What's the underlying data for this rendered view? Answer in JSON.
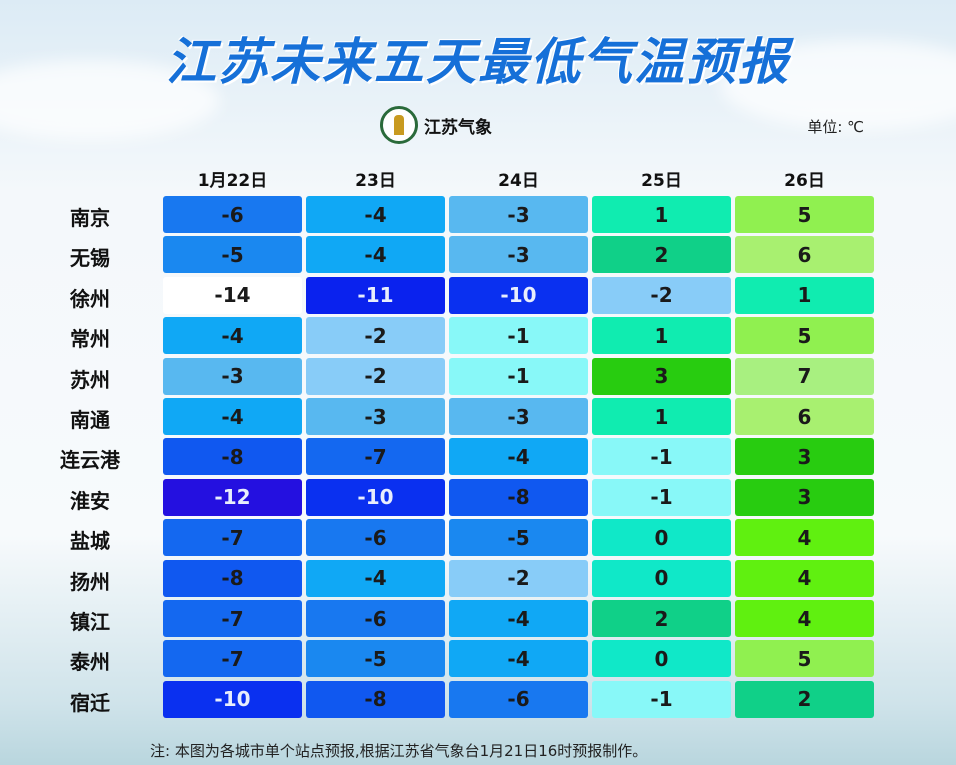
{
  "header": {
    "title": "江苏未来五天最低气温预报",
    "logo_text": "江苏气象",
    "unit": "单位: ℃"
  },
  "footnote": "注: 本图为各城市单个站点预报,根据江苏省气象台1月21日16时预报制作。",
  "chart_data": {
    "type": "heatmap",
    "columns": [
      "1月22日",
      "23日",
      "24日",
      "25日",
      "26日"
    ],
    "rows": [
      "南京",
      "无锡",
      "徐州",
      "常州",
      "苏州",
      "南通",
      "连云港",
      "淮安",
      "盐城",
      "扬州",
      "镇江",
      "泰州",
      "宿迁"
    ],
    "values": [
      [
        -6,
        -4,
        -3,
        1,
        5
      ],
      [
        -5,
        -4,
        -3,
        2,
        6
      ],
      [
        -14,
        -11,
        -10,
        -2,
        1
      ],
      [
        -4,
        -2,
        -1,
        1,
        5
      ],
      [
        -3,
        -2,
        -1,
        3,
        7
      ],
      [
        -4,
        -3,
        -3,
        1,
        6
      ],
      [
        -8,
        -7,
        -4,
        -1,
        3
      ],
      [
        -12,
        -10,
        -8,
        -1,
        3
      ],
      [
        -7,
        -6,
        -5,
        0,
        4
      ],
      [
        -8,
        -4,
        -2,
        0,
        4
      ],
      [
        -7,
        -6,
        -4,
        2,
        4
      ],
      [
        -7,
        -5,
        -4,
        0,
        5
      ],
      [
        -10,
        -8,
        -6,
        -1,
        2
      ]
    ],
    "color_scale": {
      "-14": "#ffffff",
      "-12": "#2410e0",
      "-11": "#0a22ee",
      "-10": "#0a30f0",
      "-8": "#1058f0",
      "-7": "#1468f0",
      "-6": "#1878f0",
      "-5": "#1a88f0",
      "-4": "#10a8f5",
      "-3": "#58b8f0",
      "-2": "#88ccf8",
      "-1": "#88f8f8",
      "0": "#10e8c8",
      "1": "#10ecb0",
      "2": "#10d088",
      "3": "#28cc10",
      "4": "#60f010",
      "5": "#90f050",
      "6": "#a8f070",
      "7": "#a8f080"
    }
  }
}
